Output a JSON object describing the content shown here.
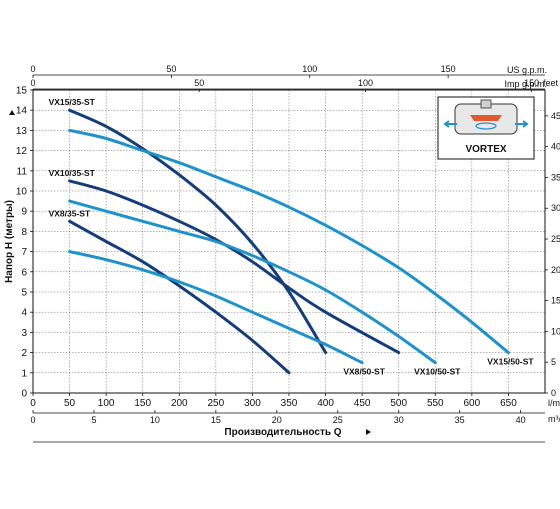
{
  "chart_data": {
    "type": "line",
    "ylabel": "Напор Н (метры)",
    "xlabel": "Производительность Q",
    "x_unit": "l/min",
    "xlim": [
      0,
      700
    ],
    "ylim": [
      0,
      15
    ],
    "grid": true,
    "y_ticks": [
      0,
      1,
      2,
      3,
      4,
      5,
      6,
      7,
      8,
      9,
      10,
      11,
      12,
      13,
      14,
      15
    ],
    "x_ticks_lmin": [
      0,
      50,
      100,
      150,
      200,
      250,
      300,
      350,
      400,
      450,
      500,
      550,
      600,
      650
    ],
    "bottom_axis": {
      "unit": "m³/h",
      "range": [
        0,
        42
      ],
      "ticks": [
        0,
        5,
        10,
        15,
        20,
        25,
        30,
        35,
        40
      ]
    },
    "top_axis_1": {
      "unit": "US g.p.m.",
      "range": [
        0,
        185
      ],
      "ticks": [
        0,
        50,
        100,
        150
      ]
    },
    "top_axis_2": {
      "unit": "Imp g.p.m.",
      "range": [
        0,
        154
      ],
      "ticks": [
        0,
        50,
        100,
        150
      ]
    },
    "right_axis": {
      "unit": "feet",
      "range": [
        0,
        49.2
      ],
      "ticks": [
        0,
        5,
        10,
        15,
        20,
        25,
        30,
        35,
        40,
        45
      ]
    },
    "series": [
      {
        "name": "VX15/35-ST",
        "color": "#153d7a",
        "x": [
          50,
          100,
          150,
          200,
          250,
          300,
          350,
          400
        ],
        "y": [
          14,
          13.2,
          12.1,
          10.8,
          9.3,
          7.4,
          5.0,
          2.0
        ]
      },
      {
        "name": "VX10/35-ST",
        "color": "#153d7a",
        "x": [
          50,
          100,
          150,
          200,
          250,
          300,
          350,
          400,
          500
        ],
        "y": [
          10.5,
          10.0,
          9.3,
          8.5,
          7.6,
          6.5,
          5.2,
          4.0,
          2.0
        ]
      },
      {
        "name": "VX8/35-ST",
        "color": "#153d7a",
        "x": [
          50,
          100,
          150,
          200,
          250,
          300,
          350
        ],
        "y": [
          8.5,
          7.5,
          6.5,
          5.3,
          4.0,
          2.6,
          1.0
        ]
      },
      {
        "name": "VX15/50-ST",
        "color": "#1f93c9",
        "x": [
          50,
          100,
          150,
          200,
          250,
          300,
          350,
          400,
          450,
          500,
          550,
          600,
          650
        ],
        "y": [
          13.0,
          12.6,
          12.0,
          11.4,
          10.7,
          10.0,
          9.2,
          8.3,
          7.3,
          6.2,
          4.9,
          3.5,
          2.0
        ]
      },
      {
        "name": "VX10/50-ST",
        "color": "#1f93c9",
        "x": [
          50,
          100,
          150,
          200,
          250,
          300,
          350,
          400,
          450,
          500,
          550
        ],
        "y": [
          9.5,
          9.0,
          8.5,
          8.0,
          7.5,
          6.8,
          6.0,
          5.1,
          4.0,
          2.8,
          1.5
        ]
      },
      {
        "name": "VX8/50-ST",
        "color": "#1f93c9",
        "x": [
          50,
          100,
          150,
          200,
          250,
          300,
          350,
          400,
          450
        ],
        "y": [
          7.0,
          6.6,
          6.1,
          5.5,
          4.8,
          4.0,
          3.2,
          2.4,
          1.5
        ]
      }
    ],
    "series_labels": [
      {
        "text": "VX15/35-ST",
        "anchor": "start-top"
      },
      {
        "text": "VX10/35-ST",
        "anchor": "start-top"
      },
      {
        "text": "VX8/35-ST",
        "anchor": "start-top"
      },
      {
        "text": "VX15/50-ST",
        "anchor": "end"
      },
      {
        "text": "VX10/50-ST",
        "anchor": "end"
      },
      {
        "text": "VX8/50-ST",
        "anchor": "end"
      }
    ],
    "inset": {
      "label": "VORTEX"
    }
  }
}
